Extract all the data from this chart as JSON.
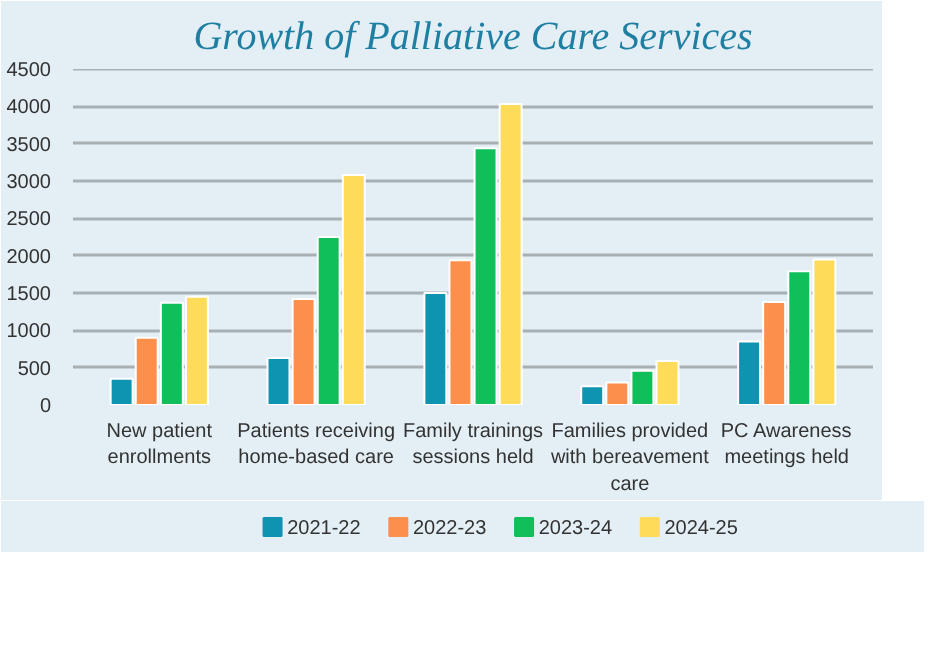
{
  "chart_data": {
    "type": "bar",
    "title": "Growth of Palliative Care Services",
    "categories": [
      "New patient enrollments",
      "Patients receiving home-based care",
      "Family trainings sessions held",
      "Families provided with bereavement care",
      "PC Awareness meetings held"
    ],
    "series": [
      {
        "name": "2021-22",
        "color": "#0e93b0",
        "values": [
          350,
          630,
          1500,
          250,
          850
        ]
      },
      {
        "name": "2022-23",
        "color": "#fd8f4d",
        "values": [
          900,
          1420,
          1940,
          300,
          1380
        ]
      },
      {
        "name": "2023-24",
        "color": "#11bf5a",
        "values": [
          1370,
          2250,
          3440,
          460,
          1790
        ]
      },
      {
        "name": "2024-25",
        "color": "#ffdb5a",
        "values": [
          1450,
          3080,
          4030,
          590,
          1950
        ]
      }
    ],
    "ylim": [
      0,
      4500
    ],
    "yticks": [
      0,
      500,
      1000,
      1500,
      2000,
      2500,
      3000,
      3500,
      4000,
      4500
    ],
    "grid": "y",
    "legend": "bottom"
  }
}
